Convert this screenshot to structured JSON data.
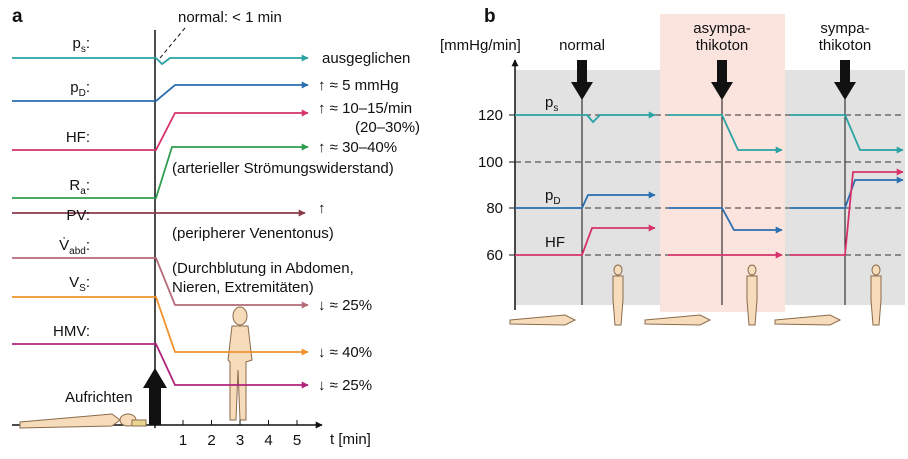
{
  "panel_a": {
    "label": "a",
    "annotation": "normal: < 1 min",
    "action": "Aufrichten",
    "axis_label": "t [min]",
    "xticks": [
      "1",
      "2",
      "3",
      "4",
      "5"
    ],
    "rows": [
      {
        "symbol": "p",
        "subscript": "s",
        "end": ":",
        "texts": [
          "ausgeglichen"
        ]
      },
      {
        "symbol": "p",
        "subscript": "D",
        "end": ":",
        "texts": [
          "↑ ≈ 5 mmHg"
        ]
      },
      {
        "symbol": "HF:",
        "texts": [
          "↑ ≈ 10–15/min",
          "(20–30%)"
        ]
      },
      {
        "symbol": "R",
        "subscript": "a",
        "end": ":",
        "texts": [
          "↑ ≈ 30–40%",
          "(arterieller Strömungswiderstand)"
        ]
      },
      {
        "symbol": "PV:",
        "texts": [
          "↑",
          "(peripherer Venentonus)"
        ]
      },
      {
        "symbol": "V̇",
        "subscript": "abd",
        "end": ":",
        "texts": [
          "(Durchblutung in Abdomen,",
          "Nieren, Extremitäten)",
          "↓ ≈ 25%"
        ]
      },
      {
        "symbol": "V",
        "subscript": "S",
        "end": ":",
        "texts": [
          "↓ ≈ 40%"
        ]
      },
      {
        "symbol": "HMV:",
        "texts": [
          "↓ ≈ 25%"
        ]
      }
    ]
  },
  "panel_b": {
    "label": "b",
    "axis_label": "[mmHg/min]",
    "yticks": [
      "120",
      "100",
      "80",
      "60"
    ],
    "columns": [
      [
        "normal"
      ],
      [
        "asympa-",
        "thikoton"
      ],
      [
        "sympa-",
        "thikoton"
      ]
    ],
    "series_labels": [
      {
        "symbol": "p",
        "subscript": "s"
      },
      {
        "symbol": "p",
        "subscript": "D"
      },
      {
        "symbol": "HF"
      }
    ]
  }
}
